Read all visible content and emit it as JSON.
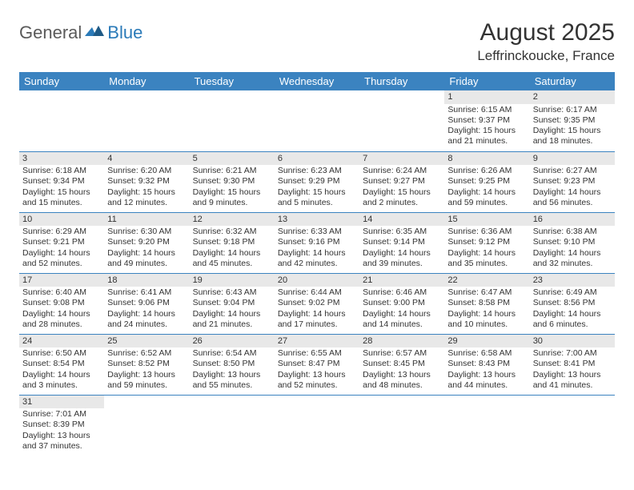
{
  "logo": {
    "part1": "General",
    "part2": "Blue"
  },
  "title": "August 2025",
  "location": "Leffrinckoucke, France",
  "colors": {
    "header_bg": "#3b83c0",
    "header_fg": "#ffffff",
    "daynum_bg": "#e8e8e8",
    "row_divider": "#3b83c0",
    "text": "#333333",
    "logo_gray": "#5a5a5a",
    "logo_blue": "#2a7ab8"
  },
  "fonts": {
    "title_size": 30,
    "location_size": 17,
    "header_size": 13,
    "cell_size": 10.5
  },
  "dayHeaders": [
    "Sunday",
    "Monday",
    "Tuesday",
    "Wednesday",
    "Thursday",
    "Friday",
    "Saturday"
  ],
  "weeks": [
    [
      null,
      null,
      null,
      null,
      null,
      {
        "n": "1",
        "sr": "Sunrise: 6:15 AM",
        "ss": "Sunset: 9:37 PM",
        "d1": "Daylight: 15 hours",
        "d2": "and 21 minutes."
      },
      {
        "n": "2",
        "sr": "Sunrise: 6:17 AM",
        "ss": "Sunset: 9:35 PM",
        "d1": "Daylight: 15 hours",
        "d2": "and 18 minutes."
      }
    ],
    [
      {
        "n": "3",
        "sr": "Sunrise: 6:18 AM",
        "ss": "Sunset: 9:34 PM",
        "d1": "Daylight: 15 hours",
        "d2": "and 15 minutes."
      },
      {
        "n": "4",
        "sr": "Sunrise: 6:20 AM",
        "ss": "Sunset: 9:32 PM",
        "d1": "Daylight: 15 hours",
        "d2": "and 12 minutes."
      },
      {
        "n": "5",
        "sr": "Sunrise: 6:21 AM",
        "ss": "Sunset: 9:30 PM",
        "d1": "Daylight: 15 hours",
        "d2": "and 9 minutes."
      },
      {
        "n": "6",
        "sr": "Sunrise: 6:23 AM",
        "ss": "Sunset: 9:29 PM",
        "d1": "Daylight: 15 hours",
        "d2": "and 5 minutes."
      },
      {
        "n": "7",
        "sr": "Sunrise: 6:24 AM",
        "ss": "Sunset: 9:27 PM",
        "d1": "Daylight: 15 hours",
        "d2": "and 2 minutes."
      },
      {
        "n": "8",
        "sr": "Sunrise: 6:26 AM",
        "ss": "Sunset: 9:25 PM",
        "d1": "Daylight: 14 hours",
        "d2": "and 59 minutes."
      },
      {
        "n": "9",
        "sr": "Sunrise: 6:27 AM",
        "ss": "Sunset: 9:23 PM",
        "d1": "Daylight: 14 hours",
        "d2": "and 56 minutes."
      }
    ],
    [
      {
        "n": "10",
        "sr": "Sunrise: 6:29 AM",
        "ss": "Sunset: 9:21 PM",
        "d1": "Daylight: 14 hours",
        "d2": "and 52 minutes."
      },
      {
        "n": "11",
        "sr": "Sunrise: 6:30 AM",
        "ss": "Sunset: 9:20 PM",
        "d1": "Daylight: 14 hours",
        "d2": "and 49 minutes."
      },
      {
        "n": "12",
        "sr": "Sunrise: 6:32 AM",
        "ss": "Sunset: 9:18 PM",
        "d1": "Daylight: 14 hours",
        "d2": "and 45 minutes."
      },
      {
        "n": "13",
        "sr": "Sunrise: 6:33 AM",
        "ss": "Sunset: 9:16 PM",
        "d1": "Daylight: 14 hours",
        "d2": "and 42 minutes."
      },
      {
        "n": "14",
        "sr": "Sunrise: 6:35 AM",
        "ss": "Sunset: 9:14 PM",
        "d1": "Daylight: 14 hours",
        "d2": "and 39 minutes."
      },
      {
        "n": "15",
        "sr": "Sunrise: 6:36 AM",
        "ss": "Sunset: 9:12 PM",
        "d1": "Daylight: 14 hours",
        "d2": "and 35 minutes."
      },
      {
        "n": "16",
        "sr": "Sunrise: 6:38 AM",
        "ss": "Sunset: 9:10 PM",
        "d1": "Daylight: 14 hours",
        "d2": "and 32 minutes."
      }
    ],
    [
      {
        "n": "17",
        "sr": "Sunrise: 6:40 AM",
        "ss": "Sunset: 9:08 PM",
        "d1": "Daylight: 14 hours",
        "d2": "and 28 minutes."
      },
      {
        "n": "18",
        "sr": "Sunrise: 6:41 AM",
        "ss": "Sunset: 9:06 PM",
        "d1": "Daylight: 14 hours",
        "d2": "and 24 minutes."
      },
      {
        "n": "19",
        "sr": "Sunrise: 6:43 AM",
        "ss": "Sunset: 9:04 PM",
        "d1": "Daylight: 14 hours",
        "d2": "and 21 minutes."
      },
      {
        "n": "20",
        "sr": "Sunrise: 6:44 AM",
        "ss": "Sunset: 9:02 PM",
        "d1": "Daylight: 14 hours",
        "d2": "and 17 minutes."
      },
      {
        "n": "21",
        "sr": "Sunrise: 6:46 AM",
        "ss": "Sunset: 9:00 PM",
        "d1": "Daylight: 14 hours",
        "d2": "and 14 minutes."
      },
      {
        "n": "22",
        "sr": "Sunrise: 6:47 AM",
        "ss": "Sunset: 8:58 PM",
        "d1": "Daylight: 14 hours",
        "d2": "and 10 minutes."
      },
      {
        "n": "23",
        "sr": "Sunrise: 6:49 AM",
        "ss": "Sunset: 8:56 PM",
        "d1": "Daylight: 14 hours",
        "d2": "and 6 minutes."
      }
    ],
    [
      {
        "n": "24",
        "sr": "Sunrise: 6:50 AM",
        "ss": "Sunset: 8:54 PM",
        "d1": "Daylight: 14 hours",
        "d2": "and 3 minutes."
      },
      {
        "n": "25",
        "sr": "Sunrise: 6:52 AM",
        "ss": "Sunset: 8:52 PM",
        "d1": "Daylight: 13 hours",
        "d2": "and 59 minutes."
      },
      {
        "n": "26",
        "sr": "Sunrise: 6:54 AM",
        "ss": "Sunset: 8:50 PM",
        "d1": "Daylight: 13 hours",
        "d2": "and 55 minutes."
      },
      {
        "n": "27",
        "sr": "Sunrise: 6:55 AM",
        "ss": "Sunset: 8:47 PM",
        "d1": "Daylight: 13 hours",
        "d2": "and 52 minutes."
      },
      {
        "n": "28",
        "sr": "Sunrise: 6:57 AM",
        "ss": "Sunset: 8:45 PM",
        "d1": "Daylight: 13 hours",
        "d2": "and 48 minutes."
      },
      {
        "n": "29",
        "sr": "Sunrise: 6:58 AM",
        "ss": "Sunset: 8:43 PM",
        "d1": "Daylight: 13 hours",
        "d2": "and 44 minutes."
      },
      {
        "n": "30",
        "sr": "Sunrise: 7:00 AM",
        "ss": "Sunset: 8:41 PM",
        "d1": "Daylight: 13 hours",
        "d2": "and 41 minutes."
      }
    ],
    [
      {
        "n": "31",
        "sr": "Sunrise: 7:01 AM",
        "ss": "Sunset: 8:39 PM",
        "d1": "Daylight: 13 hours",
        "d2": "and 37 minutes."
      },
      null,
      null,
      null,
      null,
      null,
      null
    ]
  ]
}
